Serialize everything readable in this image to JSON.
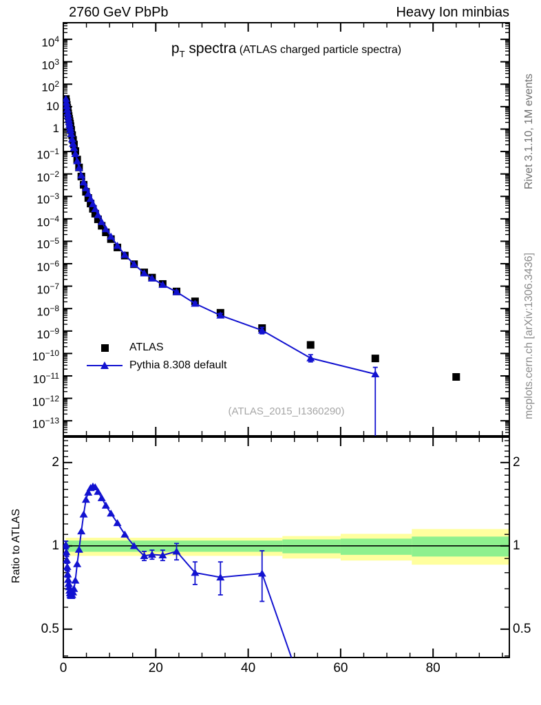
{
  "header": {
    "left": "2760 GeV PbPb",
    "right": "Heavy Ion minbias"
  },
  "title": {
    "p": "p",
    "sub": "T",
    "main": " spectra",
    "paren": "(ATLAS charged particle spectra)"
  },
  "legend": {
    "items": [
      {
        "label": "ATLAS",
        "marker": "black-square"
      },
      {
        "label": "Pythia 8.308 default",
        "marker": "blue-triangle-line"
      }
    ]
  },
  "watermark": "(ATLAS_2015_I1360290)",
  "side_notes": {
    "top_right": "Rivet 3.1.10,  1M events",
    "bottom_right": "mcplots.cern.ch [arXiv:1306.3436]"
  },
  "colors": {
    "blue": "#1212d0",
    "black": "#000000",
    "band_green": "#8ef08e",
    "band_yellow": "#ffff9e",
    "note_gray": "#6f6f6f",
    "arxiv_gray": "#8c8c8c",
    "watermark_gray": "#a6a6a6"
  },
  "chart_data": [
    {
      "type": "scatter",
      "panel": "main",
      "title": "pT spectra (ATLAS charged particle spectra)",
      "xlabel": "",
      "ylabel": "",
      "xlim": [
        0,
        96.5
      ],
      "ylog10_range": [
        -13.67,
        4.74
      ],
      "x_major_ticks": [
        0,
        20,
        40,
        60,
        80
      ],
      "x_minor_step": 5,
      "y_decade_label_exponents": [
        4,
        3,
        2,
        1,
        0,
        -1,
        -2,
        -3,
        -4,
        -5,
        -6,
        -7,
        -8,
        -9,
        -10,
        -11,
        -12,
        -13
      ],
      "grid": false,
      "legend_position": "left-middle",
      "series": [
        {
          "name": "ATLAS",
          "marker": "square",
          "line": false,
          "points": [
            [
              0.55,
              22
            ],
            [
              0.65,
              16
            ],
            [
              0.75,
              12
            ],
            [
              0.85,
              8.8
            ],
            [
              0.95,
              6.6
            ],
            [
              1.05,
              5.0
            ],
            [
              1.15,
              3.8
            ],
            [
              1.25,
              2.9
            ],
            [
              1.35,
              2.25
            ],
            [
              1.45,
              1.75
            ],
            [
              1.55,
              1.35
            ],
            [
              1.7,
              0.92
            ],
            [
              1.9,
              0.54
            ],
            [
              2.1,
              0.33
            ],
            [
              2.3,
              0.205
            ],
            [
              2.6,
              0.105
            ],
            [
              3.0,
              0.044
            ],
            [
              3.4,
              0.0195
            ],
            [
              3.9,
              0.0077
            ],
            [
              4.4,
              0.0033
            ],
            [
              4.9,
              0.0016
            ],
            [
              5.4,
              0.00085
            ],
            [
              5.9,
              0.00048
            ],
            [
              6.4,
              0.00028
            ],
            [
              6.9,
              0.00017
            ],
            [
              7.5,
              9.5e-05
            ],
            [
              8.3,
              4.9e-05
            ],
            [
              9.2,
              2.5e-05
            ],
            [
              10.3,
              1.25e-05
            ],
            [
              11.7,
              5.3e-06
            ],
            [
              13.3,
              2.3e-06
            ],
            [
              15.3,
              9.5e-07
            ],
            [
              17.5,
              4.1e-07
            ],
            [
              19.2,
              2.4e-07
            ],
            [
              21.5,
              1.25e-07
            ],
            [
              24.5,
              5.8e-08
            ],
            [
              28.5,
              2.1e-08
            ],
            [
              34,
              6.5e-09
            ],
            [
              43,
              1.35e-09
            ],
            [
              53.5,
              2.4e-10
            ],
            [
              67.5,
              6e-11
            ],
            [
              85,
              9e-12
            ]
          ]
        },
        {
          "name": "Pythia 8.308 default",
          "marker": "triangle",
          "line": true,
          "points": [
            [
              0.55,
              22.2
            ],
            [
              0.65,
              15.2
            ],
            [
              0.75,
              10.7
            ],
            [
              0.85,
              7.4
            ],
            [
              0.95,
              5.2
            ],
            [
              1.05,
              3.78
            ],
            [
              1.15,
              2.77
            ],
            [
              1.25,
              2.06
            ],
            [
              1.35,
              1.55
            ],
            [
              1.45,
              1.18
            ],
            [
              1.55,
              0.9
            ],
            [
              1.7,
              0.607
            ],
            [
              1.9,
              0.359
            ],
            [
              2.1,
              0.224
            ],
            [
              2.3,
              0.1435
            ],
            [
              2.6,
              0.0788
            ],
            [
              3.0,
              0.0378
            ],
            [
              3.4,
              0.0189
            ],
            [
              3.9,
              0.0087
            ],
            [
              4.4,
              0.00429
            ],
            [
              4.9,
              0.00235
            ],
            [
              5.4,
              0.00133
            ],
            [
              5.9,
              0.000778
            ],
            [
              6.4,
              0.000459
            ],
            [
              6.9,
              0.000277
            ],
            [
              7.5,
              0.000149
            ],
            [
              8.3,
              7.3e-05
            ],
            [
              9.2,
              3.5e-05
            ],
            [
              10.3,
              1.64e-05
            ],
            [
              11.7,
              6.4e-06
            ],
            [
              13.3,
              2.5e-06
            ],
            [
              15.3,
              9.5e-07
            ],
            [
              17.5,
              3.77e-07
            ],
            [
              19.2,
              2.23e-07
            ],
            [
              21.5,
              1.16e-07
            ],
            [
              24.5,
              5.54e-08,
              5e-08,
              6.1e-08
            ],
            [
              28.5,
              1.68e-08,
              1.45e-08,
              1.95e-08
            ],
            [
              34,
              5e-09,
              4.1e-09,
              6.1e-09
            ],
            [
              43,
              1.07e-09,
              7.5e-10,
              1.45e-09
            ],
            [
              53.5,
              6.2e-11,
              4.2e-11,
              8.8e-11
            ],
            [
              67.5,
              1.2e-11,
              1e-15,
              2.4e-11
            ]
          ]
        }
      ]
    },
    {
      "type": "ratio",
      "panel": "ratio",
      "ylabel": "Ratio to ATLAS",
      "xlim": [
        0,
        96.5
      ],
      "ylog_bounds": [
        0.395,
        2.47
      ],
      "y_major_ticks": [
        0.5,
        1,
        2
      ],
      "y_major_tick_labels": [
        "0.5",
        "1",
        "2"
      ],
      "y_minor_step": 0.1,
      "x_major_ticks": [
        0,
        20,
        40,
        60,
        80
      ],
      "x_tick_labels": [
        "0",
        "20",
        "40",
        "60",
        "80"
      ],
      "x_minor_step": 5,
      "reference_line": 1,
      "bands": [
        {
          "x0": 0.5,
          "x1": 47.4,
          "green": [
            0.952,
            1.045
          ],
          "yellow": [
            0.92,
            1.07
          ]
        },
        {
          "x0": 47.4,
          "x1": 60.0,
          "green": [
            0.94,
            1.055
          ],
          "yellow": [
            0.9,
            1.085
          ]
        },
        {
          "x0": 60.0,
          "x1": 75.4,
          "green": [
            0.928,
            1.062
          ],
          "yellow": [
            0.885,
            1.105
          ]
        },
        {
          "x0": 75.4,
          "x1": 96.5,
          "green": [
            0.915,
            1.08
          ],
          "yellow": [
            0.855,
            1.15
          ]
        }
      ],
      "series": [
        {
          "name": "Pythia 8.308 default / ATLAS",
          "marker": "triangle",
          "line": true,
          "points": [
            [
              0.55,
              1.01,
              0.98,
              1.04
            ],
            [
              0.65,
              0.95,
              0.925,
              0.975
            ],
            [
              0.75,
              0.89,
              0.865,
              0.915
            ],
            [
              0.85,
              0.84,
              0.815,
              0.865
            ],
            [
              0.95,
              0.79,
              0.77,
              0.81
            ],
            [
              1.05,
              0.755
            ],
            [
              1.15,
              0.73
            ],
            [
              1.25,
              0.71
            ],
            [
              1.35,
              0.69
            ],
            [
              1.45,
              0.675
            ],
            [
              1.55,
              0.665
            ],
            [
              1.7,
              0.66
            ],
            [
              1.9,
              0.665
            ],
            [
              2.1,
              0.68
            ],
            [
              2.3,
              0.7
            ],
            [
              2.6,
              0.75
            ],
            [
              3.0,
              0.86
            ],
            [
              3.4,
              0.97
            ],
            [
              3.9,
              1.13
            ],
            [
              4.4,
              1.3
            ],
            [
              4.9,
              1.47
            ],
            [
              5.4,
              1.56
            ],
            [
              5.9,
              1.62
            ],
            [
              6.4,
              1.64
            ],
            [
              6.9,
              1.63
            ],
            [
              7.5,
              1.57
            ],
            [
              8.3,
              1.49
            ],
            [
              9.2,
              1.4
            ],
            [
              10.3,
              1.31
            ],
            [
              11.7,
              1.21
            ],
            [
              13.3,
              1.1
            ],
            [
              15.3,
              1.0
            ],
            [
              17.5,
              0.92,
              0.885,
              0.955
            ],
            [
              19.2,
              0.93,
              0.895,
              0.965
            ],
            [
              21.5,
              0.925,
              0.885,
              0.965
            ],
            [
              24.5,
              0.955,
              0.89,
              1.02
            ],
            [
              28.5,
              0.8,
              0.725,
              0.875
            ],
            [
              34,
              0.77,
              0.665,
              0.875
            ],
            [
              43,
              0.795,
              0.63,
              0.96
            ],
            [
              53.5,
              0.25
            ]
          ]
        }
      ]
    }
  ]
}
